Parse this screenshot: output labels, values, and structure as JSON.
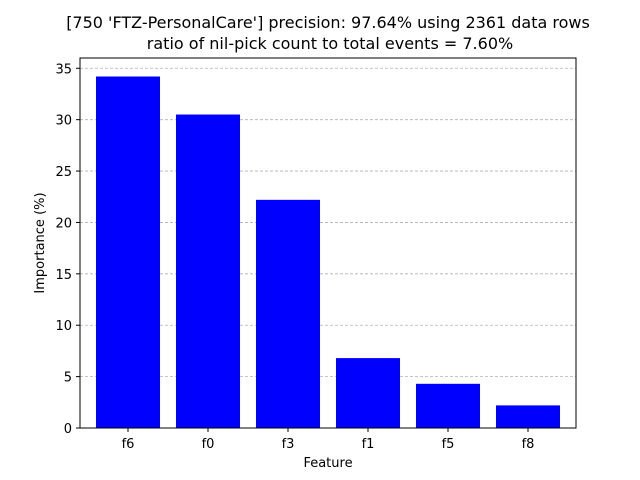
{
  "chart_data": {
    "type": "bar",
    "title": "[750 'FTZ-PersonalCare'] precision: 97.64% using 2361 data rows",
    "subtitle": "ratio of nil-pick count to total events = 7.60%",
    "xlabel": "Feature",
    "ylabel": "Importance (%)",
    "categories": [
      "f6",
      "f0",
      "f3",
      "f1",
      "f5",
      "f8"
    ],
    "values": [
      34.2,
      30.5,
      22.2,
      6.8,
      4.3,
      2.2
    ],
    "ylim": [
      0,
      36
    ],
    "yticks": [
      0,
      5,
      10,
      15,
      20,
      25,
      30,
      35
    ],
    "grid": "y-dashed",
    "bar_color": "#0000ff",
    "grid_color": "#b0b0b0"
  }
}
